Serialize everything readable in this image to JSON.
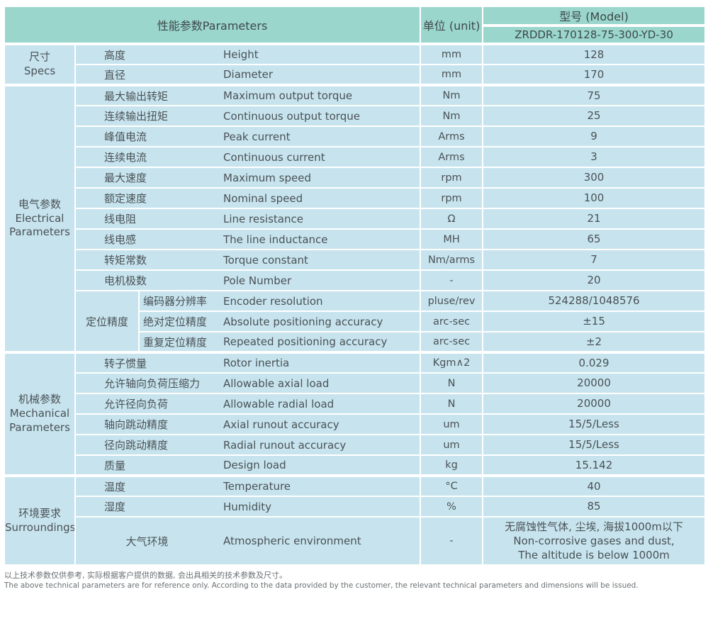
{
  "colors": {
    "header_bg": "#9bd6cd",
    "row_bg": "#c7e4ee",
    "text": "#4a5155",
    "footer_text": "#6a6f73"
  },
  "header": {
    "parameters_label": "性能参数Parameters",
    "unit_label": "单位 (unit)",
    "model_label": "型号 (Model)",
    "model_value": "ZRDDR-170128-75-300-YD-30"
  },
  "sections": {
    "specs": "尺寸\nSpecs",
    "electrical": "电气参数\nElectrical\nParameters",
    "mechanical": "机械参数\nMechanical\nParameters",
    "surroundings": "环境要求\nSurroundings"
  },
  "precision_group": "定位精度",
  "specs_rows": [
    {
      "cn": "高度",
      "en": "Height",
      "unit": "mm",
      "value": "128"
    },
    {
      "cn": "直径",
      "en": "Diameter",
      "unit": "mm",
      "value": "170"
    }
  ],
  "electrical_rows": [
    {
      "cn": "最大输出转矩",
      "en": "Maximum output torque",
      "unit": "Nm",
      "value": "75"
    },
    {
      "cn": "连续输出扭矩",
      "en": "Continuous output torque",
      "unit": "Nm",
      "value": "25"
    },
    {
      "cn": "峰值电流",
      "en": "Peak current",
      "unit": "Arms",
      "value": "9"
    },
    {
      "cn": "连续电流",
      "en": "Continuous current",
      "unit": "Arms",
      "value": "3"
    },
    {
      "cn": "最大速度",
      "en": "Maximum speed",
      "unit": "rpm",
      "value": "300"
    },
    {
      "cn": "额定速度",
      "en": "Nominal speed",
      "unit": "rpm",
      "value": "100"
    },
    {
      "cn": "线电阻",
      "en": "Line resistance",
      "unit": "Ω",
      "value": "21"
    },
    {
      "cn": "线电感",
      "en": "The line inductance",
      "unit": "MH",
      "value": "65"
    },
    {
      "cn": "转矩常数",
      "en": "Torque constant",
      "unit": "Nm/arms",
      "value": "7"
    },
    {
      "cn": "电机极数",
      "en": "Pole Number",
      "unit": "-",
      "value": "20"
    }
  ],
  "precision_rows": [
    {
      "cn": "编码器分辨率",
      "en": "Encoder resolution",
      "unit": "pluse/rev",
      "value": "524288/1048576"
    },
    {
      "cn": "绝对定位精度",
      "en": "Absolute positioning accuracy",
      "unit": "arc-sec",
      "value": "±15"
    },
    {
      "cn": "重复定位精度",
      "en": "Repeated positioning accuracy",
      "unit": "arc-sec",
      "value": "±2"
    }
  ],
  "mechanical_rows": [
    {
      "cn": "转子惯量",
      "en": "Rotor inertia",
      "unit": "Kgm∧2",
      "value": "0.029"
    },
    {
      "cn": "允许轴向负荷压缩力",
      "en": "Allowable axial load",
      "unit": "N",
      "value": "20000"
    },
    {
      "cn": "允许径向负荷",
      "en": "Allowable radial load",
      "unit": "N",
      "value": "20000"
    },
    {
      "cn": "轴向跳动精度",
      "en": "Axial runout accuracy",
      "unit": "um",
      "value": "15/5/Less"
    },
    {
      "cn": "径向跳动精度",
      "en": "Radial runout accuracy",
      "unit": "um",
      "value": "15/5/Less"
    },
    {
      "cn": "质量",
      "en": "Design load",
      "unit": "kg",
      "value": "15.142"
    }
  ],
  "surroundings_rows": [
    {
      "cn": "温度",
      "en": "Temperature",
      "unit": "°C",
      "value": "40"
    },
    {
      "cn": "湿度",
      "en": "Humidity",
      "unit": "%",
      "value": "85"
    }
  ],
  "atmospheric_row": {
    "cn": "大气环境",
    "en": "Atmospheric environment",
    "unit": "-",
    "value": "无腐蚀性气体, 尘埃, 海拔1000m以下\nNon-corrosive gases and dust,\nThe altitude is below 1000m"
  },
  "footer": {
    "note_cn": "以上技术参数仅供参考, 实际根据客户提供的数据, 会出具相关的技术参数及尺寸。",
    "note_en": "The above technical parameters are for reference only. According to the data provided by the customer, the relevant technical parameters and dimensions will be issued."
  }
}
